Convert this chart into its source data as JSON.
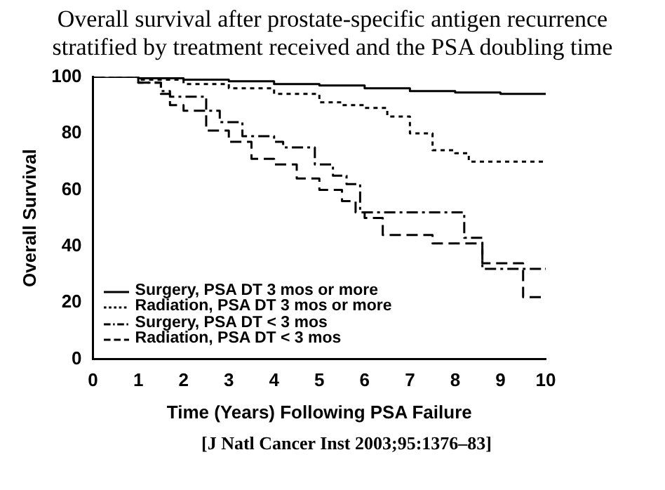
{
  "chart_data": {
    "type": "step",
    "title": "Overall survival after prostate-specific antigen recurrence\nstratified by treatment received and the PSA doubling time",
    "xlabel": "Time (Years) Following PSA Failure",
    "ylabel": "Overall Survival",
    "xlim": [
      0,
      10
    ],
    "xticks": [
      0,
      1,
      2,
      3,
      4,
      5,
      6,
      7,
      8,
      9,
      10
    ],
    "ylim": [
      0,
      100
    ],
    "yticks": [
      0,
      20,
      40,
      60,
      80,
      100
    ],
    "grid": false,
    "legend": "bottom left",
    "marker": "none",
    "annotations": [
      "[J Natl Cancer Inst 2003;95:1376–83]"
    ],
    "series": [
      {
        "name": "Surgery, PSA DT 3 mos or more",
        "color": "#000000",
        "line_style": "solid",
        "x": [
          0,
          1,
          2,
          3,
          4,
          5,
          6,
          7,
          8,
          9,
          10
        ],
        "values": [
          100,
          99.5,
          99,
          98.5,
          97.5,
          97,
          96,
          95,
          94.5,
          94,
          94
        ]
      },
      {
        "name": "Radiation, PSA DT 3 mos or more",
        "color": "#000000",
        "line_style": "dotted",
        "x": [
          0,
          1,
          2,
          3,
          4,
          5,
          5.5,
          6,
          6.5,
          7,
          7.5,
          8,
          8.3,
          10
        ],
        "values": [
          100,
          99,
          97.5,
          96,
          94,
          91,
          90,
          89,
          86,
          80,
          74,
          73,
          70,
          70
        ]
      },
      {
        "name": "Surgery, PSA DT < 3 mos",
        "color": "#000000",
        "line_style": "dashdot",
        "x": [
          0,
          1,
          1.5,
          1.7,
          2.5,
          2.8,
          3.3,
          4,
          4.2,
          4.9,
          5.3,
          5.6,
          5.9,
          8.2,
          8.6,
          10
        ],
        "values": [
          100,
          98,
          95,
          93,
          88,
          84,
          79,
          77,
          75,
          69,
          65,
          62,
          52,
          43,
          32,
          32
        ]
      },
      {
        "name": "Radiation, PSA DT < 3 mos",
        "color": "#000000",
        "line_style": "dashed",
        "x": [
          0,
          1,
          1.5,
          1.7,
          2,
          2.5,
          3,
          3.5,
          4,
          4.5,
          5,
          5.5,
          5.8,
          6,
          6.4,
          7.5,
          8.6,
          9.5,
          10
        ],
        "values": [
          100,
          98,
          94,
          90,
          88,
          81,
          77,
          71,
          69,
          64,
          60,
          56,
          52,
          50,
          44,
          41,
          34,
          22,
          22
        ]
      }
    ]
  }
}
